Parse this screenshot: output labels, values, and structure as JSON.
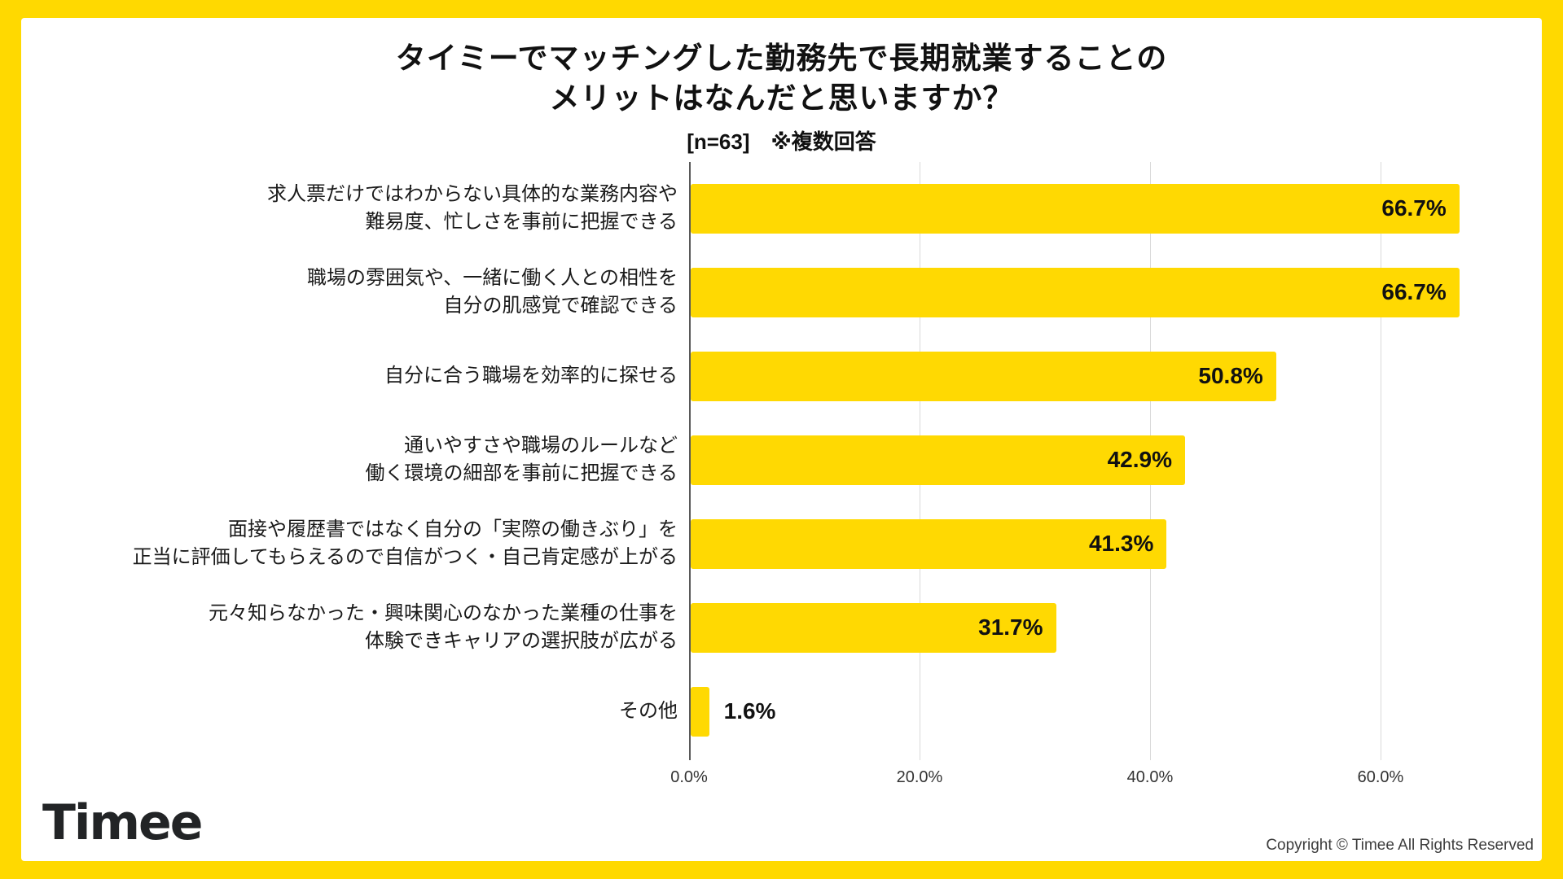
{
  "colors": {
    "brand_yellow": "#FFD900",
    "bar_yellow": "#FFD902",
    "gridline": "#D9D9D9",
    "axis_line": "#595959"
  },
  "header": {
    "title_line1": "タイミーでマッチングした勤務先で長期就業することの",
    "title_line2": "メリットはなんだと思いますか？",
    "subtitle": "[n=63]　※複数回答"
  },
  "chart_data": {
    "type": "bar",
    "orientation": "horizontal",
    "title": "タイミーでマッチングした勤務先で長期就業することのメリットはなんだと思いますか？",
    "sample_note": "[n=63] ※複数回答",
    "categories": [
      [
        "求人票だけではわからない具体的な業務内容や",
        "難易度、忙しさを事前に把握できる"
      ],
      [
        "職場の雰囲気や、一緒に働く人との相性を",
        "自分の肌感覚で確認できる"
      ],
      [
        "自分に合う職場を効率的に探せる"
      ],
      [
        "通いやすさや職場のルールなど",
        "働く環境の細部を事前に把握できる"
      ],
      [
        "面接や履歴書ではなく自分の「実際の働きぶり」を",
        "正当に評価してもらえるので自信がつく・自己肯定感が上がる"
      ],
      [
        "元々知らなかった・興味関心のなかった業種の仕事を",
        "体験できキャリアの選択肢が広がる"
      ],
      [
        "その他"
      ]
    ],
    "values": [
      66.7,
      66.7,
      50.8,
      42.9,
      41.3,
      31.7,
      1.6
    ],
    "value_labels": [
      "66.7%",
      "66.7%",
      "50.8%",
      "42.9%",
      "41.3%",
      "31.7%",
      "1.6%"
    ],
    "x_ticks": [
      "0.0%",
      "20.0%",
      "40.0%",
      "60.0%"
    ],
    "x_tick_values": [
      0,
      20,
      40,
      60
    ],
    "xlim": [
      0,
      73.5
    ],
    "grid": "vertical",
    "legend": "none",
    "bar_color": "#FFD902",
    "value_label_position": "inside-right (outside for bars < 10%)"
  },
  "footer": {
    "logo_text": "Timee",
    "copyright": "Copyright © Timee All Rights Reserved"
  }
}
